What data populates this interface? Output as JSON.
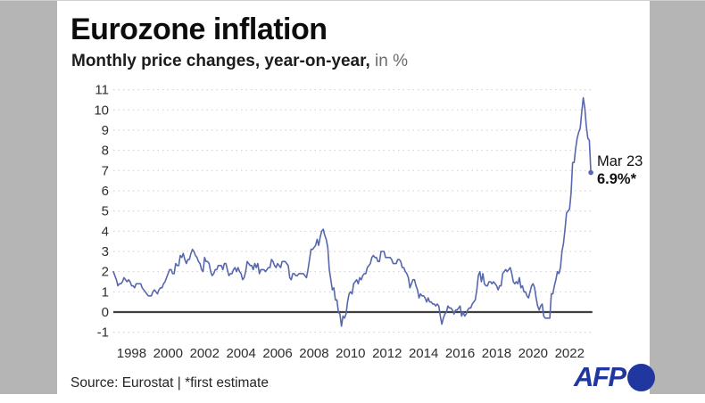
{
  "page": {
    "background_gray": "#b5b5b5",
    "card_background": "#ffffff"
  },
  "header": {
    "title": "Eurozone inflation",
    "subtitle_main": "Monthly price changes, year-on-year,",
    "subtitle_unit": "in %"
  },
  "annotation": {
    "line1": "Mar 23",
    "line2": "6.9%*"
  },
  "footer": {
    "source": "Source: Eurostat | *first estimate",
    "logo_text": "AFP",
    "logo_color": "#2137a0"
  },
  "chart_data": {
    "type": "line",
    "title": "Eurozone inflation",
    "subtitle": "Monthly price changes, year-on-year, in %",
    "frequency": "monthly",
    "x_start": "1997-01",
    "x_end": "2023-03",
    "xlim": [
      1997.0,
      2023.25
    ],
    "ylim": [
      -1.5,
      11.5
    ],
    "y_ticks": [
      -1,
      0,
      1,
      2,
      3,
      4,
      5,
      6,
      7,
      8,
      9,
      10,
      11
    ],
    "x_ticks": [
      1998,
      2000,
      2002,
      2004,
      2006,
      2008,
      2010,
      2012,
      2014,
      2016,
      2018,
      2020,
      2022
    ],
    "grid": "dotted-horizontal",
    "zero_line": true,
    "line_color": "#5767ac",
    "zero_line_color": "#3f3f3f",
    "grid_color": "#cdcdcd",
    "tick_label_color": "#2e2e2e",
    "last_point": {
      "label": "Mar 23",
      "value": 6.9
    },
    "values": [
      2.0,
      1.8,
      1.6,
      1.3,
      1.4,
      1.4,
      1.5,
      1.7,
      1.6,
      1.5,
      1.6,
      1.5,
      1.3,
      1.3,
      1.2,
      1.4,
      1.4,
      1.4,
      1.4,
      1.2,
      1.1,
      1.0,
      0.9,
      0.8,
      0.8,
      0.8,
      1.0,
      1.1,
      1.0,
      0.9,
      1.1,
      1.2,
      1.2,
      1.4,
      1.5,
      1.7,
      1.9,
      2.1,
      2.1,
      1.9,
      1.9,
      2.4,
      2.3,
      2.3,
      2.8,
      2.7,
      2.9,
      2.6,
      2.4,
      2.6,
      2.6,
      2.9,
      3.1,
      3.0,
      2.8,
      2.7,
      2.5,
      2.4,
      2.1,
      2.0,
      2.7,
      2.5,
      2.5,
      2.4,
      2.0,
      1.8,
      1.9,
      2.1,
      2.1,
      2.3,
      2.3,
      2.3,
      2.1,
      2.4,
      2.4,
      2.1,
      1.8,
      1.9,
      1.9,
      2.1,
      2.2,
      2.0,
      2.2,
      2.0,
      1.9,
      1.6,
      1.7,
      2.0,
      2.5,
      2.4,
      2.3,
      2.3,
      2.1,
      2.4,
      2.2,
      2.4,
      1.9,
      2.1,
      2.1,
      2.1,
      2.0,
      2.1,
      2.2,
      2.2,
      2.6,
      2.5,
      2.3,
      2.2,
      2.4,
      2.3,
      2.2,
      2.5,
      2.5,
      2.5,
      2.4,
      2.3,
      1.7,
      1.6,
      1.9,
      1.9,
      1.8,
      1.8,
      1.9,
      1.9,
      1.9,
      1.9,
      1.8,
      1.7,
      2.1,
      2.6,
      3.1,
      3.1,
      3.2,
      3.3,
      3.6,
      3.3,
      3.7,
      4.0,
      4.1,
      3.8,
      3.6,
      3.2,
      2.1,
      1.6,
      1.1,
      1.2,
      0.6,
      0.6,
      0.0,
      -0.1,
      -0.7,
      -0.2,
      -0.3,
      -0.1,
      0.5,
      0.9,
      1.0,
      0.9,
      1.4,
      1.5,
      1.6,
      1.4,
      1.7,
      1.6,
      1.8,
      1.9,
      1.9,
      2.2,
      2.3,
      2.4,
      2.7,
      2.8,
      2.7,
      2.7,
      2.5,
      2.5,
      3.0,
      3.0,
      3.0,
      2.7,
      2.7,
      2.7,
      2.7,
      2.6,
      2.4,
      2.4,
      2.4,
      2.6,
      2.6,
      2.5,
      2.2,
      2.2,
      2.0,
      1.9,
      1.7,
      1.2,
      1.4,
      1.6,
      1.6,
      1.3,
      1.1,
      0.7,
      0.9,
      0.8,
      0.8,
      0.7,
      0.5,
      0.7,
      0.5,
      0.5,
      0.4,
      0.4,
      0.3,
      0.4,
      0.3,
      -0.2,
      -0.6,
      -0.3,
      -0.1,
      0.0,
      0.3,
      0.2,
      0.2,
      0.1,
      -0.1,
      0.1,
      0.1,
      0.2,
      0.3,
      -0.2,
      0.0,
      -0.2,
      -0.1,
      0.1,
      0.2,
      0.2,
      0.4,
      0.5,
      0.6,
      1.1,
      1.8,
      2.0,
      1.5,
      1.9,
      1.4,
      1.3,
      1.3,
      1.5,
      1.5,
      1.4,
      1.5,
      1.4,
      1.3,
      1.1,
      1.3,
      1.3,
      1.9,
      2.0,
      2.1,
      2.0,
      2.1,
      2.2,
      1.9,
      1.5,
      1.4,
      1.5,
      1.4,
      1.7,
      1.2,
      1.3,
      1.0,
      1.0,
      0.8,
      0.7,
      1.0,
      1.3,
      1.4,
      1.2,
      0.7,
      0.3,
      0.1,
      0.3,
      0.4,
      -0.2,
      -0.3,
      -0.3,
      -0.3,
      -0.3,
      0.9,
      0.9,
      1.3,
      1.6,
      2.0,
      1.9,
      2.2,
      3.0,
      3.4,
      4.1,
      4.9,
      5.0,
      5.1,
      5.9,
      7.4,
      7.4,
      8.1,
      8.6,
      8.9,
      9.1,
      9.9,
      10.6,
      10.1,
      9.2,
      8.6,
      8.5,
      6.9
    ]
  }
}
